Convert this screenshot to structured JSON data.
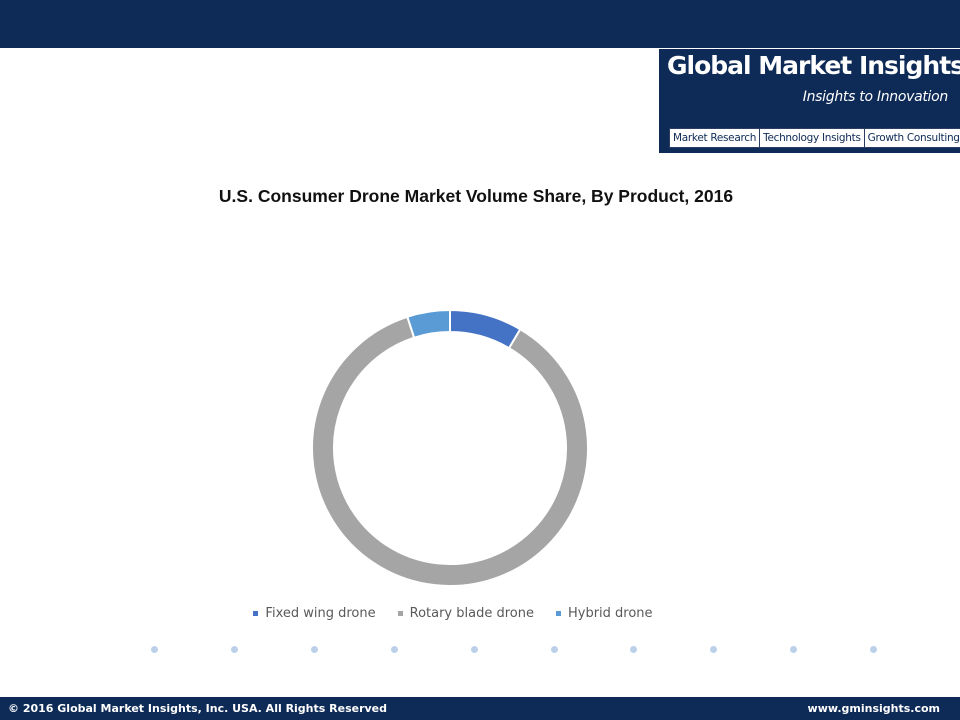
{
  "logo": {
    "title": "Global Market Insights",
    "tagline": "Insights to Innovation",
    "tabs": [
      "Market Research",
      "Technology Insights",
      "Growth Consulting"
    ]
  },
  "chart_data": {
    "type": "pie",
    "title": "U.S. Consumer Drone Market Volume Share, By Product, 2016",
    "categories": [
      "Fixed wing drone",
      "Rotary blade drone",
      "Hybrid drone"
    ],
    "values": [
      8.5,
      86.5,
      5.0
    ],
    "colors": [
      "#4472c4",
      "#a5a5a5",
      "#5b9bd5"
    ],
    "legend": "bottom"
  },
  "footer": {
    "copyright": "© 2016 Global Market Insights, Inc. USA.  All Rights Reserved",
    "website": "www.gminsights.com"
  },
  "colors": {
    "brand": "#0e2a56",
    "dots": "#bcd0ea"
  }
}
